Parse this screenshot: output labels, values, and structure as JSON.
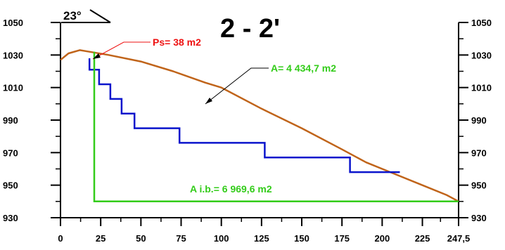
{
  "title": "2 - 2'",
  "angle_label": "23°",
  "annotations": {
    "ps": "Ps= 38 m2",
    "a": "A= 4 434,7 m2",
    "aib": "A i.b.= 6 969,6 m2"
  },
  "colors": {
    "terrain": "#C0641A",
    "benches": "#0A14CC",
    "boundary": "#33CC1A",
    "ps_label": "#EE1111",
    "axes": "#000000",
    "leader": "#000000"
  },
  "chart_data": {
    "type": "line",
    "xlim": [
      0,
      247.5
    ],
    "ylim": [
      930,
      1050
    ],
    "x_ticks": [
      "0",
      "25",
      "50",
      "75",
      "100",
      "125",
      "150",
      "175",
      "200",
      "225",
      "247,5"
    ],
    "x_tick_values": [
      0,
      25,
      50,
      75,
      100,
      125,
      150,
      175,
      200,
      225,
      247.5
    ],
    "y_ticks": [
      "930",
      "950",
      "970",
      "990",
      "1010",
      "1030",
      "1050"
    ],
    "y_tick_values": [
      930,
      950,
      970,
      990,
      1010,
      1030,
      1050
    ],
    "series": [
      {
        "key": "terrain",
        "points": [
          [
            0,
            1027
          ],
          [
            5,
            1031
          ],
          [
            12,
            1033
          ],
          [
            18,
            1032
          ],
          [
            30,
            1030
          ],
          [
            50,
            1026
          ],
          [
            70,
            1020
          ],
          [
            90,
            1013
          ],
          [
            100,
            1010
          ],
          [
            125,
            997
          ],
          [
            150,
            985
          ],
          [
            175,
            972
          ],
          [
            190,
            964
          ],
          [
            205,
            958
          ],
          [
            225,
            950
          ],
          [
            240,
            944
          ],
          [
            247.5,
            940
          ]
        ]
      },
      {
        "key": "benches",
        "points": [
          [
            18,
            1028
          ],
          [
            18,
            1021
          ],
          [
            24,
            1021
          ],
          [
            24,
            1012
          ],
          [
            31,
            1012
          ],
          [
            31,
            1003
          ],
          [
            38,
            1003
          ],
          [
            38,
            994
          ],
          [
            46,
            994
          ],
          [
            46,
            985
          ],
          [
            74,
            985
          ],
          [
            74,
            976
          ],
          [
            127,
            976
          ],
          [
            127,
            967
          ],
          [
            180,
            967
          ],
          [
            180,
            958
          ],
          [
            211,
            958
          ]
        ]
      },
      {
        "key": "boundary",
        "points": [
          [
            21,
            1032
          ],
          [
            21,
            940
          ],
          [
            247.5,
            940
          ]
        ]
      }
    ]
  }
}
